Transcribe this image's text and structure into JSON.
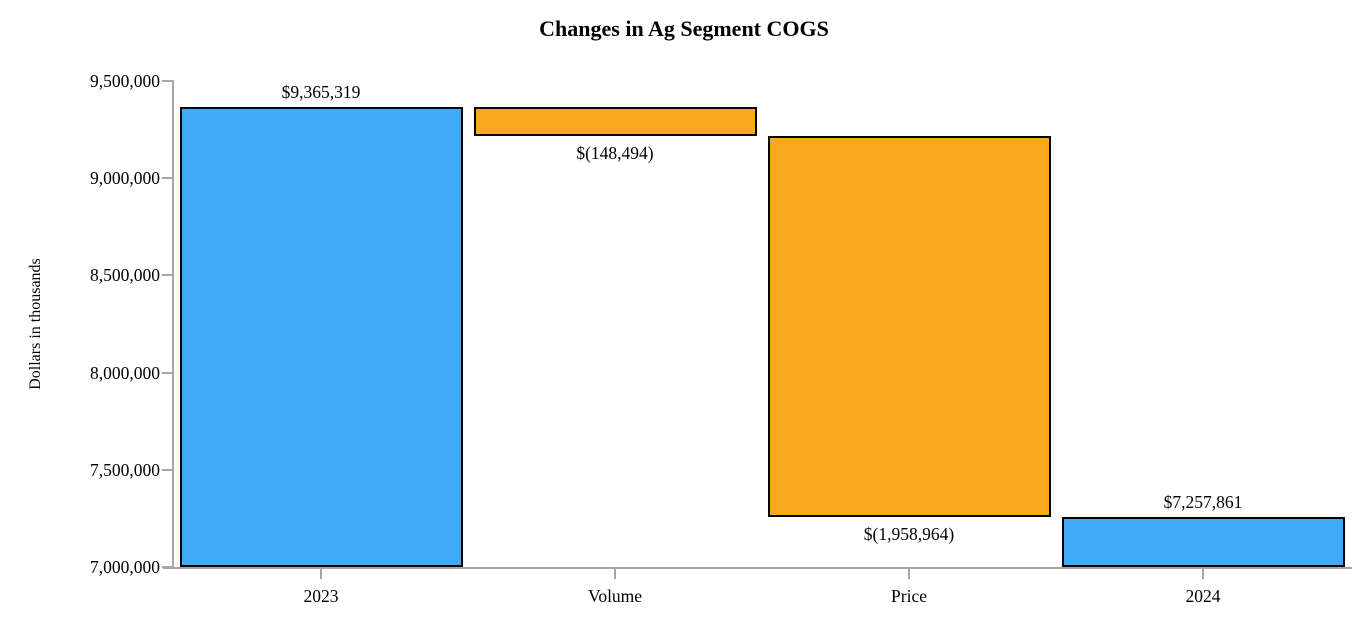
{
  "chart_data": {
    "type": "bar",
    "subtype": "waterfall",
    "title": "Changes in Ag Segment COGS",
    "ylabel": "Dollars in thousands",
    "xlabel": "",
    "ylim": [
      7000000,
      9500000
    ],
    "ytick_interval": 500000,
    "ytick_labels": [
      "7,000,000",
      "7,500,000",
      "8,000,000",
      "8,500,000",
      "9,000,000",
      "9,500,000"
    ],
    "categories": [
      "2023",
      "Volume",
      "Price",
      "2024"
    ],
    "grid": false,
    "legend_position": "none",
    "bars": [
      {
        "category": "2023",
        "value": 9365319,
        "start": 7000000,
        "end": 9365319,
        "label": "$9,365,319",
        "label_position": "above",
        "color_key": "total"
      },
      {
        "category": "Volume",
        "value": -148494,
        "start": 9365319,
        "end": 9216825,
        "label": "$(148,494)",
        "label_position": "below",
        "color_key": "change"
      },
      {
        "category": "Price",
        "value": -1958964,
        "start": 9216825,
        "end": 7257861,
        "label": "$(1,958,964)",
        "label_position": "below",
        "color_key": "change"
      },
      {
        "category": "2024",
        "value": 7257861,
        "start": 7000000,
        "end": 7257861,
        "label": "$7,257,861",
        "label_position": "above",
        "color_key": "total"
      }
    ],
    "colors": {
      "total": "#41aaf7",
      "change": "#f7a81d",
      "bar_border": "#000000",
      "axis": "#a6a6a6",
      "text": "#000000"
    }
  }
}
